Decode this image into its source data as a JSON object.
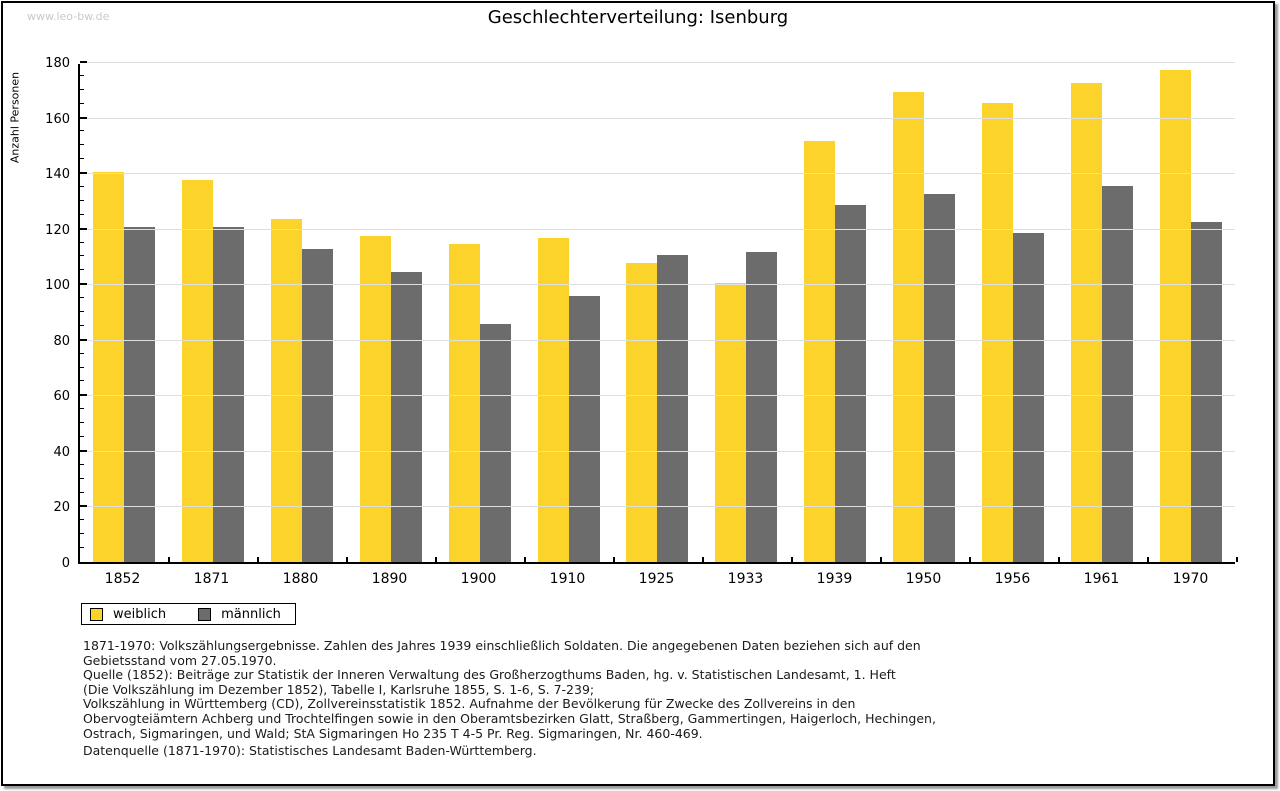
{
  "page": {
    "watermark": "www.leo-bw.de",
    "title": "Geschlechterverteilung: Isenburg"
  },
  "chart_data": {
    "type": "bar",
    "title": "Geschlechterverteilung: Isenburg",
    "xlabel": "",
    "ylabel": "Anzahl Personen",
    "ylim": [
      0,
      180
    ],
    "ytick_step": 20,
    "minor_tick_step": 5,
    "grid": true,
    "legend_position": "bottom-left",
    "categories": [
      "1852",
      "1871",
      "1880",
      "1890",
      "1900",
      "1910",
      "1925",
      "1933",
      "1939",
      "1950",
      "1956",
      "1961",
      "1970"
    ],
    "series": [
      {
        "name": "weiblich",
        "color": "#FCD32B",
        "values": [
          141,
          138,
          124,
          118,
          115,
          117,
          108,
          101,
          152,
          170,
          166,
          173,
          178
        ]
      },
      {
        "name": "männlich",
        "color": "#6C6C6C",
        "values": [
          121,
          121,
          113,
          105,
          86,
          96,
          111,
          112,
          129,
          133,
          119,
          136,
          123
        ]
      }
    ],
    "colors": {
      "grid": "#dedede",
      "axis": "#000000"
    }
  },
  "footer": {
    "lines": [
      "1871-1970: Volkszählungsergebnisse. Zahlen des Jahres 1939 einschließlich Soldaten. Die angegebenen Daten beziehen sich auf den",
      "Gebietsstand vom 27.05.1970.",
      "Quelle (1852): Beiträge zur Statistik der Inneren Verwaltung des Großherzogthums Baden, hg. v. Statistischen Landesamt, 1. Heft",
      "(Die Volkszählung im Dezember 1852), Tabelle I, Karlsruhe 1855, S. 1-6, S. 7-239;",
      "Volkszählung in Württemberg (CD), Zollvereinsstatistik 1852. Aufnahme der Bevölkerung für Zwecke des Zollvereins in den",
      "Obervogteiämtern Achberg und Trochtelfingen sowie in den Oberamtsbezirken Glatt, Straßberg, Gammertingen, Haigerloch, Hechingen,",
      "Ostrach, Sigmaringen, und Wald; StA Sigmaringen Ho 235 T 4-5 Pr. Reg. Sigmaringen, Nr. 460-469."
    ],
    "datasource": "Datenquelle (1871-1970): Statistisches Landesamt Baden-Württemberg."
  }
}
